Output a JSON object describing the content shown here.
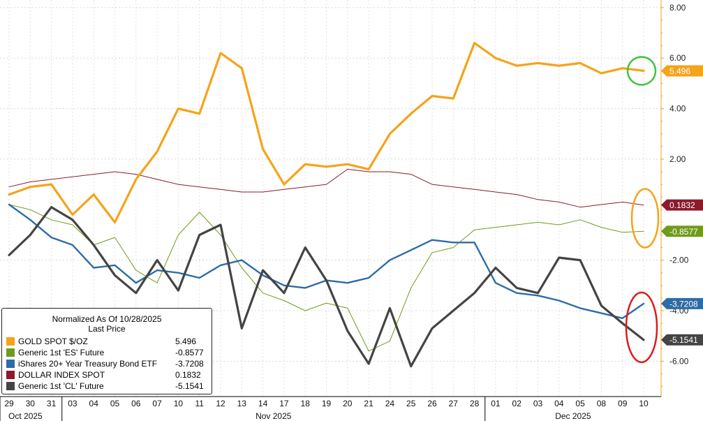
{
  "chart_data": {
    "type": "line",
    "title": "Normalized As Of 10/28/2025",
    "subtitle": "Last Price",
    "ylim": [
      -7.4,
      8.3
    ],
    "y_ticks": [
      {
        "value": 8,
        "label": "8.00"
      },
      {
        "value": 6,
        "label": "6.00"
      },
      {
        "value": 4,
        "label": "4.00"
      },
      {
        "value": 2,
        "label": "2.00"
      },
      {
        "value": -2,
        "label": "-2.00"
      },
      {
        "value": -4,
        "label": "-4.00"
      },
      {
        "value": -6,
        "label": "-6.00"
      }
    ],
    "x_days": [
      "29",
      "30",
      "31",
      "03",
      "04",
      "05",
      "06",
      "07",
      "10",
      "11",
      "12",
      "13",
      "14",
      "17",
      "18",
      "19",
      "20",
      "21",
      "24",
      "25",
      "26",
      "27",
      "28",
      "01",
      "02",
      "03",
      "04",
      "05",
      "08",
      "09",
      "10"
    ],
    "x_months": [
      {
        "label": "Oct 2025",
        "start": 0
      },
      {
        "label": "Nov 2025",
        "start": 3
      },
      {
        "label": "Dec 2025",
        "start": 23
      }
    ],
    "series": [
      {
        "name": "GOLD SPOT $/OZ",
        "color": "#f5a31a",
        "last": 5.496,
        "last_label": "5.496",
        "width": 3.2,
        "values": [
          0.6,
          0.9,
          1.0,
          -0.2,
          0.6,
          -0.5,
          1.2,
          2.3,
          4.0,
          3.8,
          6.2,
          5.6,
          2.4,
          1.0,
          1.8,
          1.7,
          1.8,
          1.6,
          3.0,
          3.8,
          4.5,
          4.4,
          6.6,
          6.0,
          5.7,
          5.8,
          5.7,
          5.8,
          5.4,
          5.6,
          5.496
        ]
      },
      {
        "name": "Generic 1st 'ES' Future",
        "color": "#6f9b1c",
        "last": -0.8577,
        "last_label": "-0.8577",
        "width": 1,
        "values": [
          0.2,
          0.0,
          -0.4,
          -0.6,
          -1.4,
          -1.1,
          -2.4,
          -2.9,
          -1.0,
          -0.1,
          -1.0,
          -2.3,
          -3.3,
          -3.6,
          -4.0,
          -3.7,
          -3.9,
          -5.6,
          -5.2,
          -3.1,
          -1.7,
          -1.5,
          -0.8,
          -0.7,
          -0.6,
          -0.5,
          -0.6,
          -0.4,
          -0.7,
          -0.9,
          -0.8577
        ]
      },
      {
        "name": "iShares 20+ Year Treasury Bond ETF",
        "color": "#2e6ca4",
        "last": -3.7208,
        "last_label": "-3.7208",
        "width": 2.4,
        "values": [
          0.2,
          -0.4,
          -1.1,
          -1.4,
          -2.3,
          -2.2,
          -2.9,
          -2.4,
          -2.5,
          -2.7,
          -2.2,
          -2.0,
          -2.6,
          -3.0,
          -3.1,
          -2.8,
          -2.9,
          -2.7,
          -2.0,
          -1.6,
          -1.2,
          -1.3,
          -1.3,
          -2.9,
          -3.3,
          -3.4,
          -3.6,
          -3.9,
          -4.1,
          -4.3,
          -3.7208
        ]
      },
      {
        "name": "DOLLAR INDEX SPOT",
        "color": "#8b1a2b",
        "last": 0.1832,
        "last_label": "0.1832",
        "width": 1,
        "values": [
          0.9,
          1.1,
          1.2,
          1.3,
          1.4,
          1.5,
          1.4,
          1.2,
          1.0,
          0.9,
          0.8,
          0.7,
          0.7,
          0.8,
          0.9,
          1.0,
          1.6,
          1.5,
          1.5,
          1.4,
          1.0,
          0.9,
          0.8,
          0.7,
          0.6,
          0.4,
          0.3,
          0.1,
          0.2,
          0.3,
          0.1832
        ]
      },
      {
        "name": "Generic 1st 'CL' Future",
        "color": "#444444",
        "last": -5.1541,
        "last_label": "-5.1541",
        "width": 3.2,
        "values": [
          -1.8,
          -1.0,
          0.1,
          -0.4,
          -1.4,
          -2.6,
          -3.3,
          -2.0,
          -3.2,
          -1.0,
          -0.6,
          -4.7,
          -2.4,
          -3.3,
          -1.5,
          -2.8,
          -4.8,
          -6.1,
          -3.9,
          -6.2,
          -4.7,
          -4.0,
          -3.3,
          -2.3,
          -3.1,
          -3.3,
          -1.9,
          -2.0,
          -3.8,
          -4.5,
          -5.1541
        ]
      }
    ],
    "annotations": [
      {
        "shape": "circle",
        "color": "#3fc43f",
        "around": "GOLD SPOT $/OZ"
      },
      {
        "shape": "ellipse",
        "color": "#f5a31a",
        "around": "Generic 1st 'ES' Future / DOLLAR INDEX SPOT"
      },
      {
        "shape": "ellipse",
        "color": "#dd1b1b",
        "around": "Generic 1st 'CL' Future / iShares 20+ Year Treasury Bond ETF"
      }
    ]
  }
}
